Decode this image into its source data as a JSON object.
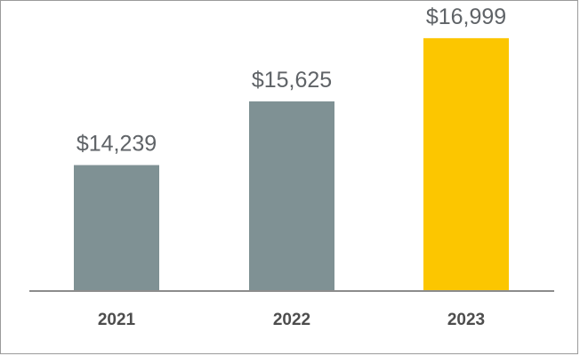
{
  "chart_data": {
    "type": "bar",
    "title": "",
    "xlabel": "",
    "ylabel": "",
    "categories": [
      "2021",
      "2022",
      "2023"
    ],
    "values": [
      14239,
      15625,
      16999
    ],
    "data_labels": [
      "$14,239",
      "$15,625",
      "$16,999"
    ],
    "ylim": [
      11500,
      17500
    ],
    "grid": false,
    "legend": "none",
    "colors": {
      "2021": "#7f9194",
      "2022": "#7f9194",
      "2023": "#fcc600"
    },
    "axis_color": "#8c8c8c"
  }
}
